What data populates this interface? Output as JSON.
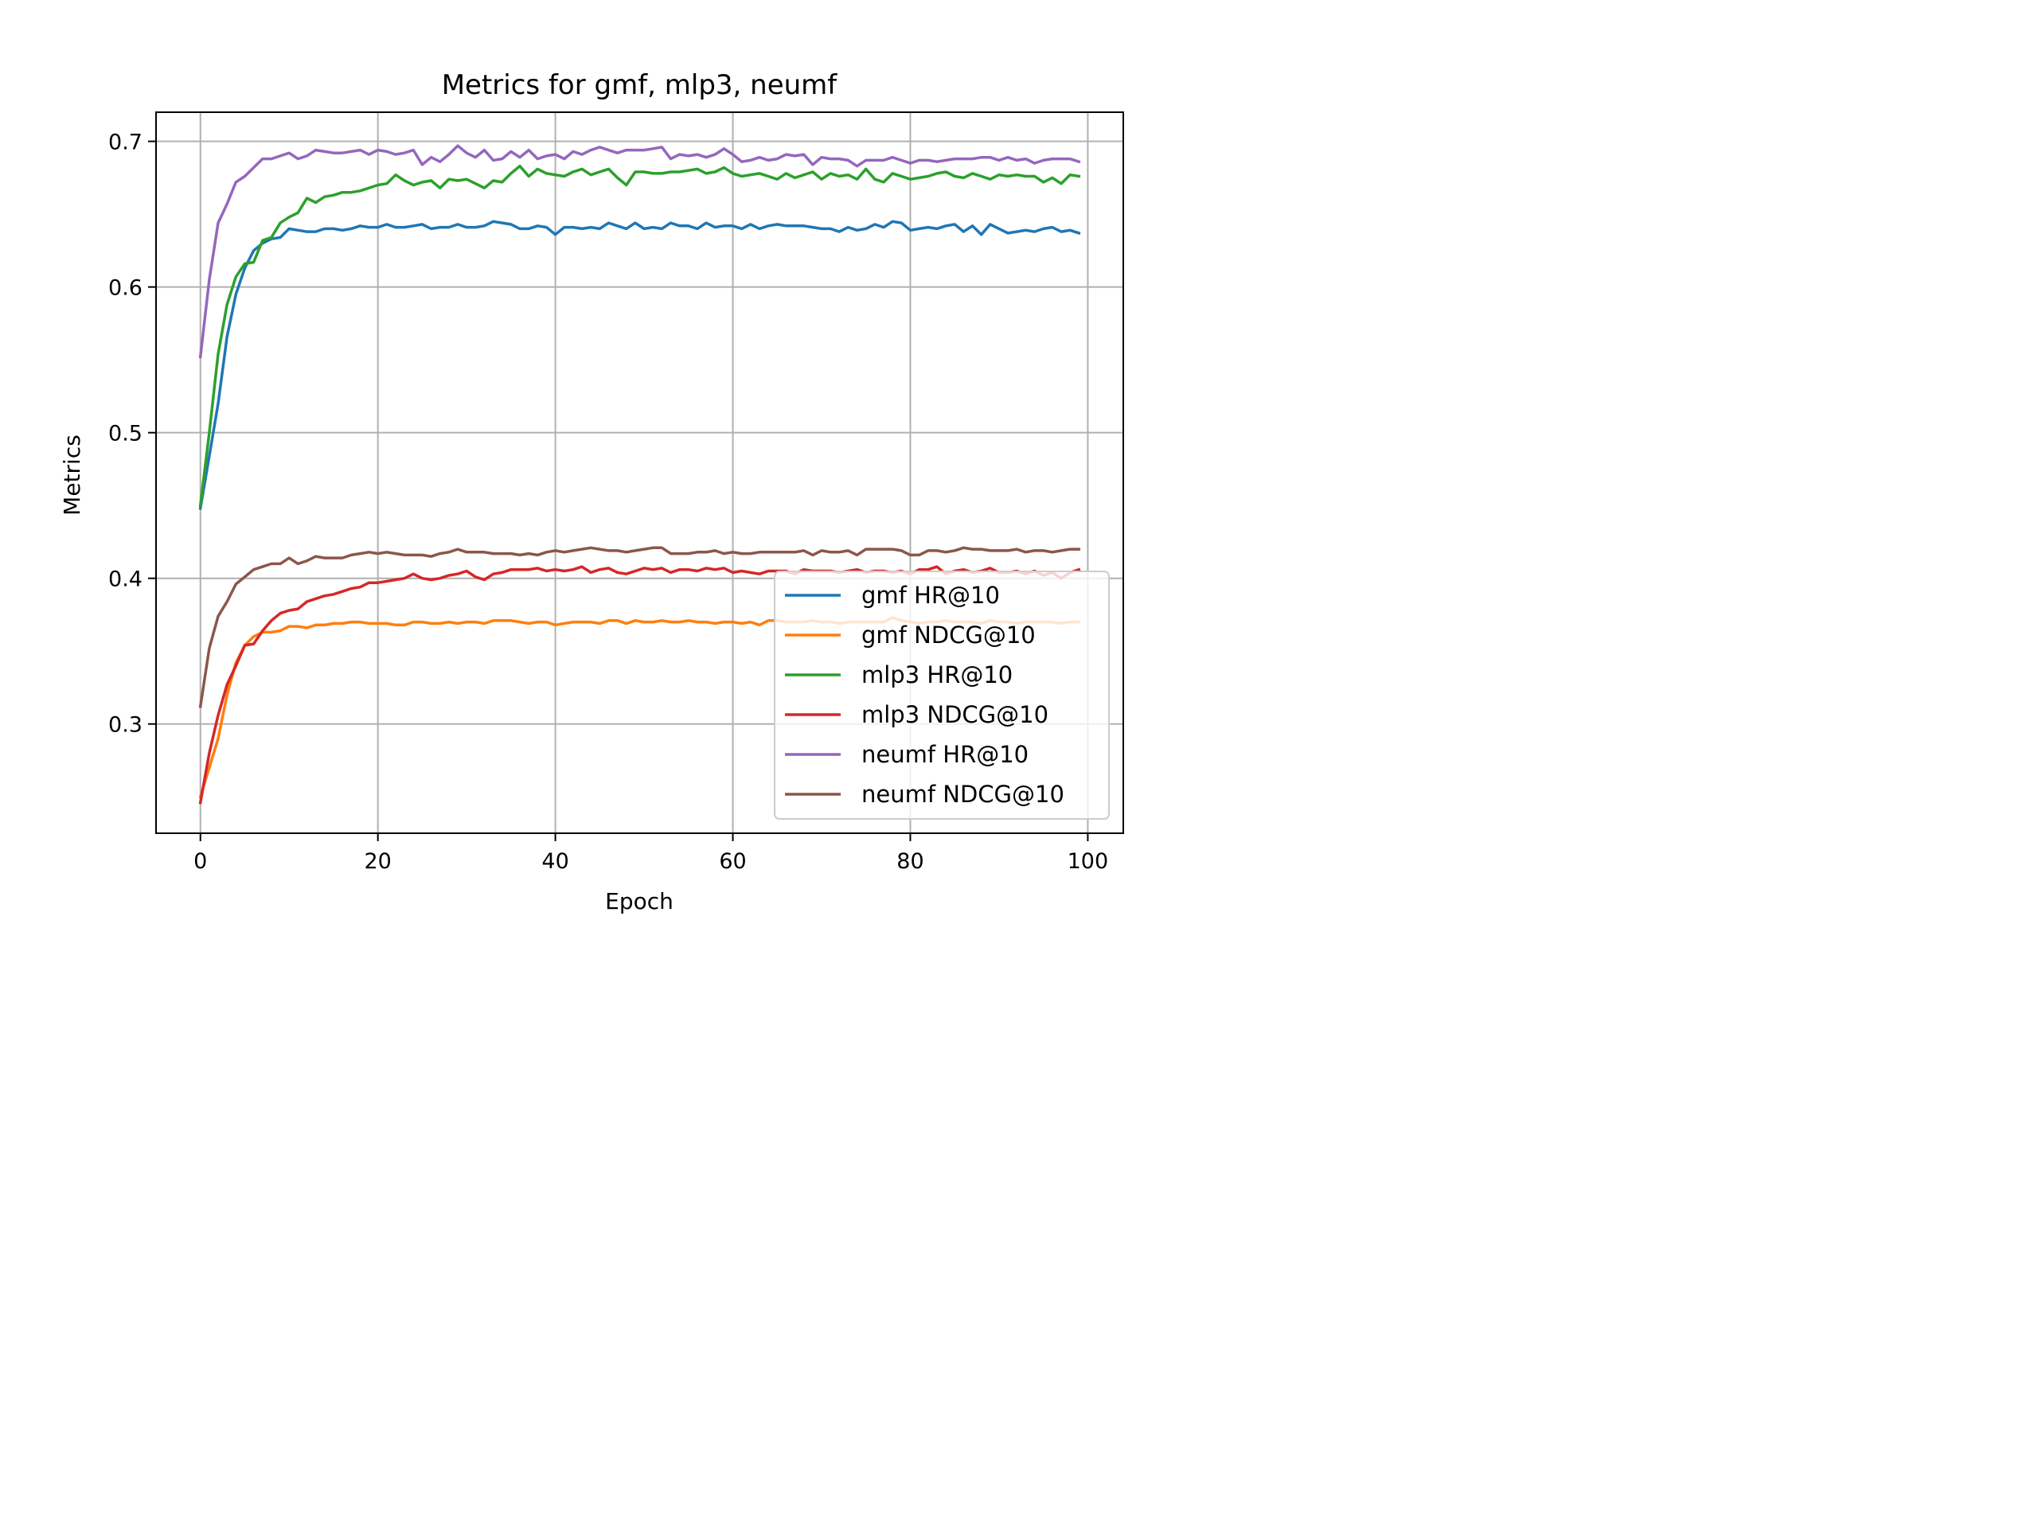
{
  "chart_data": {
    "type": "line",
    "title": "Metrics for gmf, mlp3, neumf",
    "xlabel": "Epoch",
    "ylabel": "Metrics",
    "xlim": [
      -5,
      104
    ],
    "ylim": [
      0.225,
      0.72
    ],
    "xticks": [
      "0",
      "20",
      "40",
      "60",
      "80",
      "100"
    ],
    "yticks": [
      "0.3",
      "0.4",
      "0.5",
      "0.6",
      "0.7"
    ],
    "grid": true,
    "legend_position": "lower-right",
    "x": [
      0,
      1,
      2,
      3,
      4,
      5,
      6,
      7,
      8,
      9,
      10,
      11,
      12,
      13,
      14,
      15,
      16,
      17,
      18,
      19,
      20,
      21,
      22,
      23,
      24,
      25,
      26,
      27,
      28,
      29,
      30,
      31,
      32,
      33,
      34,
      35,
      36,
      37,
      38,
      39,
      40,
      41,
      42,
      43,
      44,
      45,
      46,
      47,
      48,
      49,
      50,
      51,
      52,
      53,
      54,
      55,
      56,
      57,
      58,
      59,
      60,
      61,
      62,
      63,
      64,
      65,
      66,
      67,
      68,
      69,
      70,
      71,
      72,
      73,
      74,
      75,
      76,
      77,
      78,
      79,
      80,
      81,
      82,
      83,
      84,
      85,
      86,
      87,
      88,
      89,
      90,
      91,
      92,
      93,
      94,
      95,
      96,
      97,
      98,
      99
    ],
    "series": [
      {
        "name": "gmf HR@10",
        "color": "#1f77b4",
        "values": [
          0.448,
          0.484,
          0.52,
          0.566,
          0.595,
          0.613,
          0.625,
          0.63,
          0.633,
          0.634,
          0.64,
          0.639,
          0.638,
          0.638,
          0.64,
          0.64,
          0.639,
          0.64,
          0.642,
          0.641,
          0.641,
          0.643,
          0.641,
          0.641,
          0.642,
          0.643,
          0.64,
          0.641,
          0.641,
          0.643,
          0.641,
          0.641,
          0.642,
          0.645,
          0.644,
          0.643,
          0.64,
          0.64,
          0.642,
          0.641,
          0.636,
          0.641,
          0.641,
          0.64,
          0.641,
          0.64,
          0.644,
          0.642,
          0.64,
          0.644,
          0.64,
          0.641,
          0.64,
          0.644,
          0.642,
          0.642,
          0.64,
          0.644,
          0.641,
          0.642,
          0.642,
          0.64,
          0.643,
          0.64,
          0.642,
          0.643,
          0.642,
          0.642,
          0.642,
          0.641,
          0.64,
          0.64,
          0.638,
          0.641,
          0.639,
          0.64,
          0.643,
          0.641,
          0.645,
          0.644,
          0.639,
          0.64,
          0.641,
          0.64,
          0.642,
          0.643,
          0.638,
          0.642,
          0.636,
          0.643,
          0.64,
          0.637,
          0.638,
          0.639,
          0.638,
          0.64,
          0.641,
          0.638,
          0.639,
          0.637
        ]
      },
      {
        "name": "gmf NDCG@10",
        "color": "#ff7f0e",
        "values": [
          0.25,
          0.27,
          0.29,
          0.32,
          0.342,
          0.354,
          0.36,
          0.363,
          0.363,
          0.364,
          0.367,
          0.367,
          0.366,
          0.368,
          0.368,
          0.369,
          0.369,
          0.37,
          0.37,
          0.369,
          0.369,
          0.369,
          0.368,
          0.368,
          0.37,
          0.37,
          0.369,
          0.369,
          0.37,
          0.369,
          0.37,
          0.37,
          0.369,
          0.371,
          0.371,
          0.371,
          0.37,
          0.369,
          0.37,
          0.37,
          0.368,
          0.369,
          0.37,
          0.37,
          0.37,
          0.369,
          0.371,
          0.371,
          0.369,
          0.371,
          0.37,
          0.37,
          0.371,
          0.37,
          0.37,
          0.371,
          0.37,
          0.37,
          0.369,
          0.37,
          0.37,
          0.369,
          0.37,
          0.368,
          0.371,
          0.371,
          0.37,
          0.37,
          0.37,
          0.371,
          0.37,
          0.37,
          0.369,
          0.37,
          0.37,
          0.37,
          0.37,
          0.37,
          0.373,
          0.371,
          0.37,
          0.369,
          0.37,
          0.37,
          0.371,
          0.37,
          0.37,
          0.37,
          0.369,
          0.371,
          0.37,
          0.37,
          0.369,
          0.37,
          0.37,
          0.37,
          0.37,
          0.369,
          0.37,
          0.37
        ]
      },
      {
        "name": "mlp3 HR@10",
        "color": "#2ca02c",
        "values": [
          0.45,
          0.5,
          0.554,
          0.588,
          0.607,
          0.616,
          0.617,
          0.632,
          0.634,
          0.644,
          0.648,
          0.651,
          0.661,
          0.658,
          0.662,
          0.663,
          0.665,
          0.665,
          0.666,
          0.668,
          0.67,
          0.671,
          0.677,
          0.673,
          0.67,
          0.672,
          0.673,
          0.668,
          0.674,
          0.673,
          0.674,
          0.671,
          0.668,
          0.673,
          0.672,
          0.678,
          0.683,
          0.676,
          0.681,
          0.678,
          0.677,
          0.676,
          0.679,
          0.681,
          0.677,
          0.679,
          0.681,
          0.675,
          0.67,
          0.679,
          0.679,
          0.678,
          0.678,
          0.679,
          0.679,
          0.68,
          0.681,
          0.678,
          0.679,
          0.682,
          0.678,
          0.676,
          0.677,
          0.678,
          0.676,
          0.674,
          0.678,
          0.675,
          0.677,
          0.679,
          0.674,
          0.678,
          0.676,
          0.677,
          0.674,
          0.681,
          0.674,
          0.672,
          0.678,
          0.676,
          0.674,
          0.675,
          0.676,
          0.678,
          0.679,
          0.676,
          0.675,
          0.678,
          0.676,
          0.674,
          0.677,
          0.676,
          0.677,
          0.676,
          0.676,
          0.672,
          0.675,
          0.671,
          0.677,
          0.676
        ]
      },
      {
        "name": "mlp3 NDCG@10",
        "color": "#d62728",
        "values": [
          0.246,
          0.28,
          0.306,
          0.327,
          0.34,
          0.354,
          0.355,
          0.364,
          0.371,
          0.376,
          0.378,
          0.379,
          0.384,
          0.386,
          0.388,
          0.389,
          0.391,
          0.393,
          0.394,
          0.397,
          0.397,
          0.398,
          0.399,
          0.4,
          0.403,
          0.4,
          0.399,
          0.4,
          0.402,
          0.403,
          0.405,
          0.401,
          0.399,
          0.403,
          0.404,
          0.406,
          0.406,
          0.406,
          0.407,
          0.405,
          0.406,
          0.405,
          0.406,
          0.408,
          0.404,
          0.406,
          0.407,
          0.404,
          0.403,
          0.405,
          0.407,
          0.406,
          0.407,
          0.404,
          0.406,
          0.406,
          0.405,
          0.407,
          0.406,
          0.407,
          0.404,
          0.405,
          0.404,
          0.403,
          0.405,
          0.405,
          0.405,
          0.403,
          0.406,
          0.405,
          0.405,
          0.405,
          0.404,
          0.405,
          0.406,
          0.404,
          0.405,
          0.405,
          0.404,
          0.405,
          0.403,
          0.406,
          0.406,
          0.408,
          0.403,
          0.405,
          0.406,
          0.404,
          0.405,
          0.407,
          0.404,
          0.404,
          0.405,
          0.403,
          0.405,
          0.402,
          0.404,
          0.4,
          0.404,
          0.406
        ]
      },
      {
        "name": "neumf HR@10",
        "color": "#9467bd",
        "values": [
          0.552,
          0.605,
          0.644,
          0.657,
          0.672,
          0.676,
          0.682,
          0.688,
          0.688,
          0.69,
          0.692,
          0.688,
          0.69,
          0.694,
          0.693,
          0.692,
          0.692,
          0.693,
          0.694,
          0.691,
          0.694,
          0.693,
          0.691,
          0.692,
          0.694,
          0.684,
          0.689,
          0.686,
          0.691,
          0.697,
          0.692,
          0.689,
          0.694,
          0.687,
          0.688,
          0.693,
          0.689,
          0.694,
          0.688,
          0.69,
          0.691,
          0.688,
          0.693,
          0.691,
          0.694,
          0.696,
          0.694,
          0.692,
          0.694,
          0.694,
          0.694,
          0.695,
          0.696,
          0.688,
          0.691,
          0.69,
          0.691,
          0.689,
          0.691,
          0.695,
          0.691,
          0.686,
          0.687,
          0.689,
          0.687,
          0.688,
          0.691,
          0.69,
          0.691,
          0.684,
          0.689,
          0.688,
          0.688,
          0.687,
          0.683,
          0.687,
          0.687,
          0.687,
          0.689,
          0.687,
          0.685,
          0.687,
          0.687,
          0.686,
          0.687,
          0.688,
          0.688,
          0.688,
          0.689,
          0.689,
          0.687,
          0.689,
          0.687,
          0.688,
          0.685,
          0.687,
          0.688,
          0.688,
          0.688,
          0.686
        ]
      },
      {
        "name": "neumf NDCG@10",
        "color": "#8c564b",
        "values": [
          0.312,
          0.352,
          0.374,
          0.384,
          0.396,
          0.401,
          0.406,
          0.408,
          0.41,
          0.41,
          0.414,
          0.41,
          0.412,
          0.415,
          0.414,
          0.414,
          0.414,
          0.416,
          0.417,
          0.418,
          0.417,
          0.418,
          0.417,
          0.416,
          0.416,
          0.416,
          0.415,
          0.417,
          0.418,
          0.42,
          0.418,
          0.418,
          0.418,
          0.417,
          0.417,
          0.417,
          0.416,
          0.417,
          0.416,
          0.418,
          0.419,
          0.418,
          0.419,
          0.42,
          0.421,
          0.42,
          0.419,
          0.419,
          0.418,
          0.419,
          0.42,
          0.421,
          0.421,
          0.417,
          0.417,
          0.417,
          0.418,
          0.418,
          0.419,
          0.417,
          0.418,
          0.417,
          0.417,
          0.418,
          0.418,
          0.418,
          0.418,
          0.418,
          0.419,
          0.416,
          0.419,
          0.418,
          0.418,
          0.419,
          0.416,
          0.42,
          0.42,
          0.42,
          0.42,
          0.419,
          0.416,
          0.416,
          0.419,
          0.419,
          0.418,
          0.419,
          0.421,
          0.42,
          0.42,
          0.419,
          0.419,
          0.419,
          0.42,
          0.418,
          0.419,
          0.419,
          0.418,
          0.419,
          0.42,
          0.42
        ]
      }
    ]
  }
}
